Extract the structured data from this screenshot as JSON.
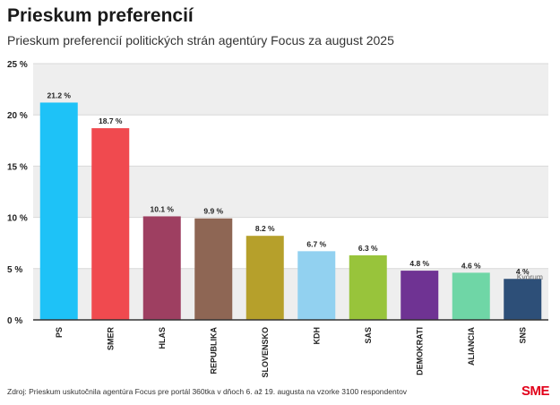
{
  "header": {
    "title": "Prieskum preferencií",
    "subtitle": "Prieskum preferencií politických strán agentúry Focus za august 2025"
  },
  "footer": {
    "source": "Zdroj: Prieskum uskutočnila agentúra Focus pre portál 360tka v dňoch 6. až 19. augusta na vzorke 3100 respondentov",
    "logo": "SME"
  },
  "chart_data": {
    "type": "bar",
    "categories": [
      "PS",
      "SMER",
      "HLAS",
      "REPUBLIKA",
      "SLOVENSKO",
      "KDH",
      "SAS",
      "DEMOKRATI",
      "ALIANCIA",
      "SNS"
    ],
    "values": [
      21.2,
      18.7,
      10.1,
      9.9,
      8.2,
      6.7,
      6.3,
      4.8,
      4.6,
      4
    ],
    "value_labels": [
      "21.2 %",
      "18.7 %",
      "10.1 %",
      "9.9 %",
      "8.2 %",
      "6.7 %",
      "6.3 %",
      "4.8 %",
      "4.6 %",
      "4 %"
    ],
    "colors": [
      "#1ec2f7",
      "#f04a4f",
      "#9e3f61",
      "#8e6654",
      "#b6a02b",
      "#92d1f0",
      "#98c43b",
      "#6f3393",
      "#6fd6a6",
      "#2d4f78"
    ],
    "ylim": [
      0,
      25
    ],
    "yticks": [
      0,
      5,
      10,
      15,
      20,
      25
    ],
    "ytick_labels": [
      "0 %",
      "5 %",
      "10 %",
      "15 %",
      "20 %",
      "25 %"
    ],
    "reference_line": {
      "value": 5,
      "label": "Kvórum"
    },
    "grid": true,
    "band_color": "#eeeeee"
  }
}
